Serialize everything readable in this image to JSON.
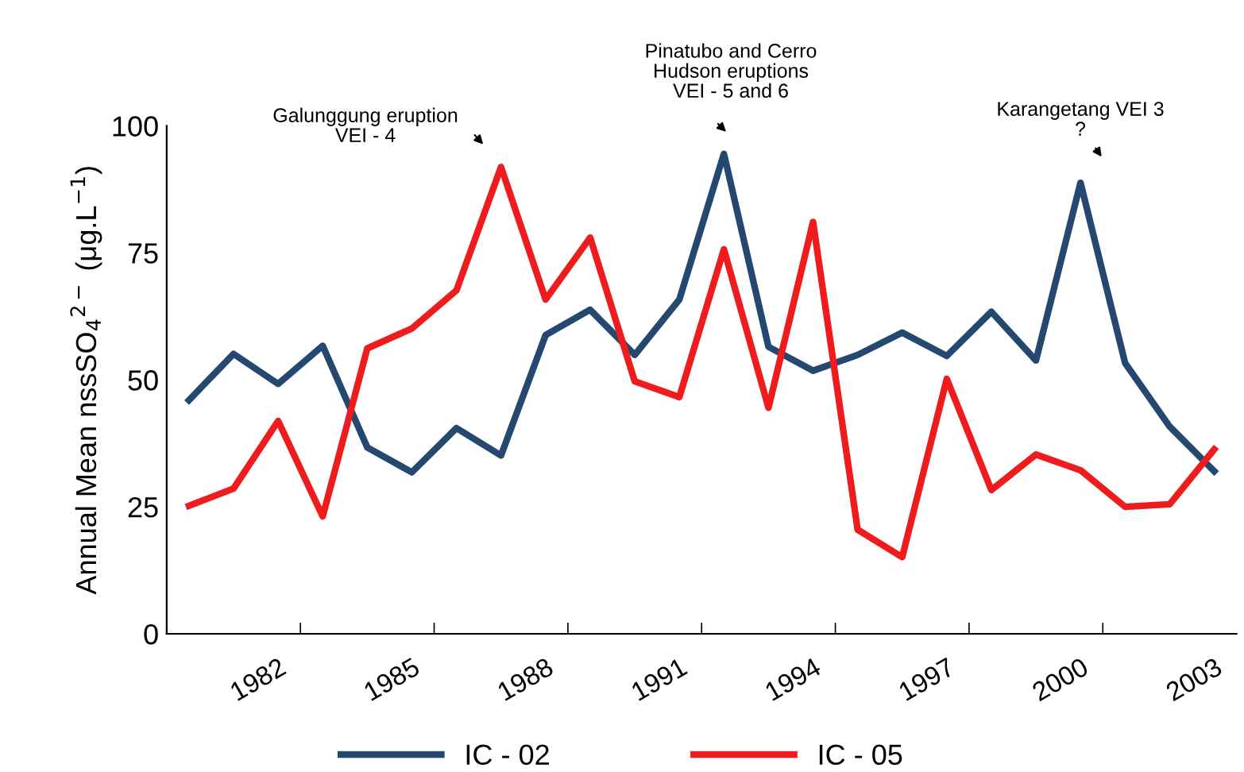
{
  "chart_data": {
    "type": "line",
    "ylabel": "Annual Mean nssSO$_{4}$$^{2−}$ (μg.L$^{−1}$)",
    "categories": [
      null,
      null,
      "1982",
      null,
      null,
      "1985",
      null,
      null,
      "1988",
      null,
      null,
      "1991",
      null,
      null,
      "1994",
      null,
      null,
      "1997",
      null,
      null,
      "2000",
      null,
      null,
      "2003"
    ],
    "series": [
      {
        "name": "IC - 02",
        "color": "#24486f",
        "values": [
          46,
          55.1,
          49.2,
          56.7,
          36.7,
          31.8,
          40.5,
          35.1,
          58.8,
          63.8,
          54.9,
          65.8,
          94.5,
          56.5,
          51.8,
          54.9,
          59.3,
          54.7,
          63.4,
          53.8,
          88.8,
          53.3,
          40.8,
          32
        ]
      },
      {
        "name": "IC - 05",
        "color": "#ee1c1c",
        "values": [
          25.2,
          28.6,
          41.9,
          23.1,
          56.2,
          60.1,
          67.6,
          91.9,
          65.8,
          78,
          49.7,
          46.6,
          75.7,
          44.5,
          81.1,
          20.5,
          15.1,
          50.2,
          28.3,
          35.3,
          32.2,
          25,
          25.5,
          36.3
        ]
      }
    ],
    "annotations": [
      "Galunggung eruption\nVEI - 4",
      "Pinatubo and Cerro\nHudson eruptions\nVEI - 5 and 6",
      "Karangetang VEI 3\n?"
    ],
    "ylim": [
      0,
      100
    ],
    "yticks": [
      0,
      25,
      50,
      75,
      100
    ],
    "grid": false,
    "legend": "bottom",
    "marker": "none",
    "line_style": "solid"
  }
}
